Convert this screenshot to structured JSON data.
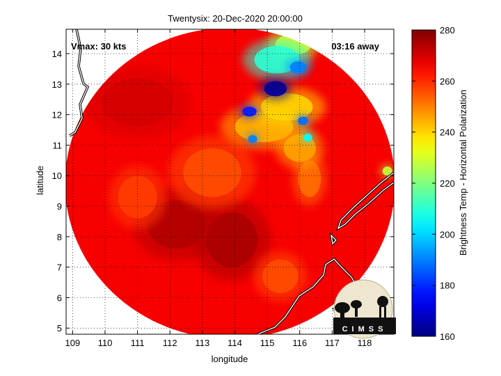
{
  "chart_data": {
    "type": "heatmap",
    "title": "Twentysix: 20-Dec-2020 20:00:00",
    "xlabel": "longitude",
    "ylabel": "latitude",
    "xlim": [
      108.8,
      118.9
    ],
    "ylim": [
      4.8,
      14.8
    ],
    "x_ticks": [
      109,
      110,
      111,
      112,
      113,
      114,
      115,
      116,
      117,
      118
    ],
    "y_ticks": [
      5,
      6,
      7,
      8,
      9,
      10,
      11,
      12,
      13,
      14
    ],
    "grid": true,
    "annotations": {
      "vmax": "Vmax: 30 kts",
      "away": "03:16 away"
    },
    "logo_text": "CIMSS",
    "colorbar": {
      "label": "Brightness Temp - Horizontal Polarization",
      "min": 160,
      "max": 280,
      "ticks": [
        160,
        180,
        200,
        220,
        240,
        260,
        280
      ],
      "colormap": "jet"
    },
    "swath": {
      "center_lon": 113.85,
      "center_lat": 9.75,
      "radius_deg": 5.0,
      "background_value": 266
    },
    "features": [
      {
        "lon": 115.25,
        "lat": 12.85,
        "value": 163,
        "sx": 0.35,
        "sy": 0.25
      },
      {
        "lon": 114.45,
        "lat": 12.1,
        "value": 178,
        "sx": 0.22,
        "sy": 0.16
      },
      {
        "lon": 115.95,
        "lat": 13.55,
        "value": 190,
        "sx": 0.25,
        "sy": 0.2
      },
      {
        "lon": 116.1,
        "lat": 11.8,
        "value": 188,
        "sx": 0.16,
        "sy": 0.14
      },
      {
        "lon": 114.55,
        "lat": 11.2,
        "value": 190,
        "sx": 0.14,
        "sy": 0.13
      },
      {
        "lon": 116.25,
        "lat": 11.25,
        "value": 205,
        "sx": 0.13,
        "sy": 0.13
      },
      {
        "lon": 115.3,
        "lat": 13.8,
        "value": 210,
        "sx": 0.7,
        "sy": 0.45
      },
      {
        "lon": 115.8,
        "lat": 14.3,
        "value": 230,
        "sx": 0.55,
        "sy": 0.35
      },
      {
        "lon": 115.6,
        "lat": 12.25,
        "value": 240,
        "sx": 0.8,
        "sy": 0.45
      },
      {
        "lon": 114.9,
        "lat": 11.6,
        "value": 244,
        "sx": 0.9,
        "sy": 0.5
      },
      {
        "lon": 116.0,
        "lat": 10.9,
        "value": 246,
        "sx": 0.5,
        "sy": 0.45
      },
      {
        "lon": 116.3,
        "lat": 9.9,
        "value": 252,
        "sx": 0.35,
        "sy": 0.6
      },
      {
        "lon": 118.7,
        "lat": 10.15,
        "value": 228,
        "sx": 0.15,
        "sy": 0.15
      },
      {
        "lon": 113.3,
        "lat": 10.1,
        "value": 256,
        "sx": 0.9,
        "sy": 0.8
      },
      {
        "lon": 111.0,
        "lat": 9.3,
        "value": 258,
        "sx": 0.6,
        "sy": 0.7
      },
      {
        "lon": 115.4,
        "lat": 6.7,
        "value": 256,
        "sx": 0.55,
        "sy": 0.55
      },
      {
        "lon": 112.2,
        "lat": 8.4,
        "value": 274,
        "sx": 0.9,
        "sy": 0.8
      },
      {
        "lon": 113.9,
        "lat": 7.9,
        "value": 275,
        "sx": 0.8,
        "sy": 0.9
      },
      {
        "lon": 111.0,
        "lat": 12.4,
        "value": 270,
        "sx": 1.1,
        "sy": 0.8
      }
    ]
  }
}
